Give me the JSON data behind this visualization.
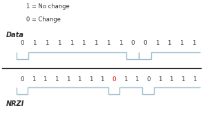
{
  "legend_line1": "1 = No change",
  "legend_line2": "0 = Change",
  "data_label": "Data",
  "nrzi_label": "NRZI",
  "data_bits": [
    "0",
    "1",
    "1",
    "1",
    "1",
    "1",
    "1",
    "1",
    "1",
    "0",
    "0",
    "1",
    "1",
    "1",
    "1"
  ],
  "nrzi_bits": [
    "0",
    "1",
    "1",
    "1",
    "1",
    "1",
    "1",
    "1",
    "0",
    "1",
    "1",
    "0",
    "1",
    "1",
    "1",
    "1"
  ],
  "nrzi_red_index": 8,
  "waveform_color": "#a0bece",
  "text_color": "#2a2a2a",
  "red_color": "#cc0000",
  "bg_color": "#ffffff",
  "divider_color": "#1a1a1a",
  "font_size_legend": 6.0,
  "font_size_bits": 6.2,
  "font_size_label": 7.0
}
